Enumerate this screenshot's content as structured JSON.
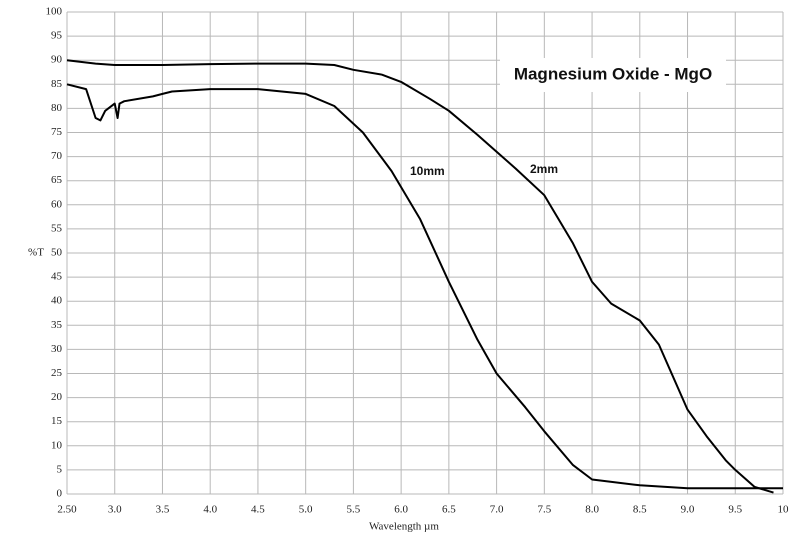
{
  "chart_data": {
    "type": "line",
    "title": "Magnesium Oxide - MgO",
    "x_label": "Wavelength µm",
    "y_label": "%T",
    "xlim": [
      2.5,
      10
    ],
    "xticks": [
      {
        "value": 2.5,
        "label": "2.50"
      },
      {
        "value": 3,
        "label": "3.0"
      },
      {
        "value": 3.5,
        "label": "3.5"
      },
      {
        "value": 4,
        "label": "4.0"
      },
      {
        "value": 4.5,
        "label": "4.5"
      },
      {
        "value": 5,
        "label": "5.0"
      },
      {
        "value": 5.5,
        "label": "5.5"
      },
      {
        "value": 6,
        "label": "6.0"
      },
      {
        "value": 6.5,
        "label": "6.5"
      },
      {
        "value": 7,
        "label": "7.0"
      },
      {
        "value": 7.5,
        "label": "7.5"
      },
      {
        "value": 8,
        "label": "8.0"
      },
      {
        "value": 8.5,
        "label": "8.5"
      },
      {
        "value": 9,
        "label": "9.0"
      },
      {
        "value": 9.5,
        "label": "9.5"
      },
      10
    ],
    "ylim": [
      0,
      100
    ],
    "yticks": [
      0,
      5,
      10,
      15,
      20,
      25,
      30,
      35,
      40,
      45,
      50,
      55,
      60,
      65,
      70,
      75,
      80,
      85,
      90,
      95,
      100
    ],
    "grid": true,
    "series": [
      {
        "name": "2mm",
        "color": "#000000",
        "x": [
          2.5,
          2.8,
          3.0,
          3.4,
          3.5,
          4.0,
          4.5,
          5.0,
          5.3,
          5.5,
          5.8,
          6.0,
          6.3,
          6.5,
          6.8,
          7.0,
          7.2,
          7.5,
          7.8,
          8.0,
          8.2,
          8.5,
          8.7,
          8.9,
          9.0,
          9.2,
          9.4,
          9.5,
          9.7,
          9.9
        ],
        "values": [
          90,
          89.3,
          89,
          89,
          89,
          89.2,
          89.3,
          89.3,
          89,
          88,
          87,
          85.5,
          82,
          79.5,
          74.5,
          71,
          67.5,
          62,
          52,
          44,
          39.5,
          36,
          31,
          22,
          17.5,
          12,
          7,
          5,
          1.5,
          0.3
        ]
      },
      {
        "name": "10mm",
        "color": "#000000",
        "x": [
          2.5,
          2.7,
          2.8,
          2.85,
          2.9,
          3.0,
          3.03,
          3.05,
          3.1,
          3.4,
          3.5,
          3.6,
          4.0,
          4.5,
          5.0,
          5.3,
          5.6,
          5.9,
          6.2,
          6.5,
          6.8,
          7.0,
          7.3,
          7.5,
          7.8,
          8.0,
          8.5,
          9.0,
          10
        ],
        "values": [
          85,
          84,
          78,
          77.5,
          79.5,
          81,
          78,
          81,
          81.5,
          82.5,
          83,
          83.5,
          84,
          84,
          83,
          80.5,
          75,
          67,
          57,
          44,
          32,
          25,
          18,
          13,
          6,
          3,
          1.8,
          1.2,
          1.2
        ]
      }
    ]
  }
}
